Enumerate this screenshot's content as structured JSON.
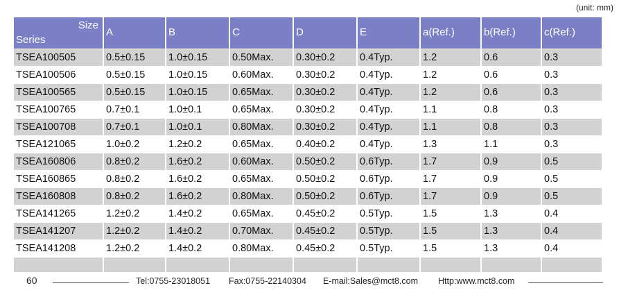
{
  "header": {
    "unit": "(unit: mm)"
  },
  "table": {
    "size_label": "Size",
    "series_label": "Series",
    "columns": [
      "A",
      "B",
      "C",
      "D",
      "E",
      "a(Ref.)",
      "b(Ref.)",
      "c(Ref.)"
    ],
    "rows": [
      [
        "TSEA100505",
        "0.5±0.15",
        "1.0±0.15",
        "0.50Max.",
        "0.30±0.2",
        "0.4Typ.",
        "1.2",
        "0.6",
        "0.3"
      ],
      [
        "TSEA100506",
        "0.5±0.15",
        "1.0±0.15",
        "0.60Max.",
        "0.30±0.2",
        "0.4Typ.",
        "1.2",
        "0.6",
        "0.3"
      ],
      [
        "TSEA100565",
        "0.5±0.15",
        "1.0±0.15",
        "0.65Max.",
        "0.30±0.2",
        "0.4Typ.",
        "1.2",
        "0.6",
        "0.3"
      ],
      [
        "TSEA100765",
        "0.7±0.1",
        "1.0±0.1",
        "0.65Max.",
        "0.30±0.2",
        "0.4Typ.",
        "1.1",
        "0.8",
        "0.3"
      ],
      [
        "TSEA100708",
        "0.7±0.1",
        "1.0±0.1",
        "0.80Max.",
        "0.30±0.2",
        "0.4Typ.",
        "1.1",
        "0.8",
        "0.3"
      ],
      [
        "TSEA121065",
        "1.0±0.2",
        "1.2±0.2",
        "0.65Max.",
        "0.40±0.2",
        "0.4Typ.",
        "1.3",
        "1.1",
        "0.3"
      ],
      [
        "TSEA160806",
        "0.8±0.2",
        "1.6±0.2",
        "0.60Max.",
        "0.50±0.2",
        "0.6Typ.",
        "1.7",
        "0.9",
        "0.5"
      ],
      [
        "TSEA160865",
        "0.8±0.2",
        "1.6±0.2",
        "0.65Max.",
        "0.50±0.2",
        "0.6Typ.",
        "1.7",
        "0.9",
        "0.5"
      ],
      [
        "TSEA160808",
        "0.8±0.2",
        "1.6±0.2",
        "0.80Max.",
        "0.50±0.2",
        "0.6Typ.",
        "1.7",
        "0.9",
        "0.5"
      ],
      [
        "TSEA141265",
        "1.2±0.2",
        "1.4±0.2",
        "0.65Max.",
        "0.45±0.2",
        "0.5Typ.",
        "1.5",
        "1.3",
        "0.4"
      ],
      [
        "TSEA141207",
        "1.2±0.2",
        "1.4±0.2",
        "0.70Max.",
        "0.45±0.2",
        "0.5Typ.",
        "1.5",
        "1.3",
        "0.4"
      ],
      [
        "TSEA141208",
        "1.2±0.2",
        "1.4±0.2",
        "0.80Max.",
        "0.45±0.2",
        "0.5Typ.",
        "1.5",
        "1.3",
        "0.4"
      ]
    ]
  },
  "footer": {
    "page": "60",
    "tel": "Tel:0755-23018051",
    "fax": "Fax:0755-22140304",
    "email": "E-mail:Sales@mct8.com",
    "http": "Http:www.mct8.com"
  }
}
